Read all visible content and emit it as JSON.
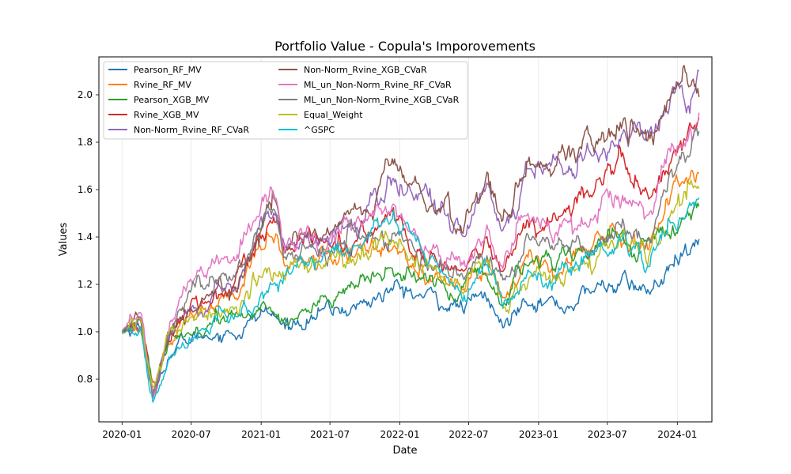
{
  "chart_data": {
    "type": "line",
    "title": "Portfolio Value - Copula's Imporovements",
    "xlabel": "Date",
    "ylabel": "Values",
    "x_start": "2020-01-01",
    "x_end": "2024-02-29",
    "xlim": [
      "2019-11-01",
      "2024-04-01"
    ],
    "ylim": [
      0.62,
      2.16
    ],
    "x_ticks": [
      {
        "date": "2020-01-01",
        "label": "2020-01"
      },
      {
        "date": "2020-07-01",
        "label": "2020-07"
      },
      {
        "date": "2021-01-01",
        "label": "2021-01"
      },
      {
        "date": "2021-07-01",
        "label": "2021-07"
      },
      {
        "date": "2022-01-01",
        "label": "2022-01"
      },
      {
        "date": "2022-07-01",
        "label": "2022-07"
      },
      {
        "date": "2023-01-01",
        "label": "2023-01"
      },
      {
        "date": "2023-07-01",
        "label": "2023-07"
      },
      {
        "date": "2024-01-01",
        "label": "2024-01"
      }
    ],
    "y_ticks": [
      {
        "value": 0.8,
        "label": "0.8"
      },
      {
        "value": 1.0,
        "label": "1.0"
      },
      {
        "value": 1.2,
        "label": "1.2"
      },
      {
        "value": 1.4,
        "label": "1.4"
      },
      {
        "value": 1.6,
        "label": "1.6"
      },
      {
        "value": 1.8,
        "label": "1.8"
      },
      {
        "value": 2.0,
        "label": "2.0"
      }
    ],
    "grid": true,
    "legend_position": "top-left",
    "series": [
      {
        "name": "Pearson_RF_MV",
        "color": "#1f77b4",
        "points": [
          [
            "2020-01-01",
            1.0
          ],
          [
            "2020-02-20",
            1.03
          ],
          [
            "2020-03-23",
            0.75
          ],
          [
            "2020-05-01",
            0.9
          ],
          [
            "2020-06-15",
            0.96
          ],
          [
            "2020-09-01",
            1.0
          ],
          [
            "2020-11-01",
            1.0
          ],
          [
            "2021-01-15",
            1.09
          ],
          [
            "2021-03-01",
            1.02
          ],
          [
            "2021-06-01",
            1.08
          ],
          [
            "2021-09-01",
            1.1
          ],
          [
            "2021-12-15",
            1.18
          ],
          [
            "2022-03-01",
            1.15
          ],
          [
            "2022-06-15",
            1.1
          ],
          [
            "2022-08-15",
            1.15
          ],
          [
            "2022-10-01",
            1.01
          ],
          [
            "2022-12-01",
            1.17
          ],
          [
            "2023-03-01",
            1.1
          ],
          [
            "2023-06-01",
            1.18
          ],
          [
            "2023-08-01",
            1.21
          ],
          [
            "2023-10-20",
            1.17
          ],
          [
            "2023-12-15",
            1.26
          ],
          [
            "2024-02-29",
            1.35
          ]
        ]
      },
      {
        "name": "Rvine_RF_MV",
        "color": "#ff7f0e",
        "points": [
          [
            "2020-01-01",
            1.0
          ],
          [
            "2020-02-20",
            1.04
          ],
          [
            "2020-03-23",
            0.77
          ],
          [
            "2020-05-01",
            0.96
          ],
          [
            "2020-07-01",
            1.08
          ],
          [
            "2020-09-01",
            1.1
          ],
          [
            "2020-11-01",
            1.15
          ],
          [
            "2021-01-15",
            1.4
          ],
          [
            "2021-02-10",
            1.44
          ],
          [
            "2021-03-01",
            1.28
          ],
          [
            "2021-06-01",
            1.3
          ],
          [
            "2021-09-01",
            1.32
          ],
          [
            "2021-12-15",
            1.4
          ],
          [
            "2022-03-01",
            1.25
          ],
          [
            "2022-06-15",
            1.18
          ],
          [
            "2022-08-15",
            1.28
          ],
          [
            "2022-10-01",
            1.15
          ],
          [
            "2022-12-01",
            1.3
          ],
          [
            "2023-03-01",
            1.28
          ],
          [
            "2023-06-01",
            1.4
          ],
          [
            "2023-08-01",
            1.42
          ],
          [
            "2023-10-20",
            1.38
          ],
          [
            "2023-12-15",
            1.55
          ],
          [
            "2024-02-29",
            1.74
          ]
        ]
      },
      {
        "name": "Pearson_XGB_MV",
        "color": "#2ca02c",
        "points": [
          [
            "2020-01-01",
            1.0
          ],
          [
            "2020-02-20",
            1.04
          ],
          [
            "2020-03-23",
            0.76
          ],
          [
            "2020-05-01",
            0.92
          ],
          [
            "2020-07-01",
            1.0
          ],
          [
            "2020-09-01",
            1.04
          ],
          [
            "2020-11-01",
            1.05
          ],
          [
            "2021-01-15",
            1.12
          ],
          [
            "2021-03-01",
            1.05
          ],
          [
            "2021-06-01",
            1.12
          ],
          [
            "2021-09-01",
            1.18
          ],
          [
            "2021-12-15",
            1.25
          ],
          [
            "2022-03-01",
            1.22
          ],
          [
            "2022-06-15",
            1.18
          ],
          [
            "2022-08-15",
            1.25
          ],
          [
            "2022-10-01",
            1.1
          ],
          [
            "2022-12-01",
            1.3
          ],
          [
            "2023-03-01",
            1.32
          ],
          [
            "2023-06-01",
            1.36
          ],
          [
            "2023-08-01",
            1.4
          ],
          [
            "2023-10-20",
            1.36
          ],
          [
            "2023-12-15",
            1.45
          ],
          [
            "2024-02-29",
            1.5
          ]
        ]
      },
      {
        "name": "Rvine_XGB_MV",
        "color": "#d62728",
        "points": [
          [
            "2020-01-01",
            1.0
          ],
          [
            "2020-02-20",
            1.04
          ],
          [
            "2020-03-23",
            0.73
          ],
          [
            "2020-05-01",
            0.95
          ],
          [
            "2020-07-01",
            1.1
          ],
          [
            "2020-09-01",
            1.15
          ],
          [
            "2020-11-01",
            1.2
          ],
          [
            "2021-01-15",
            1.42
          ],
          [
            "2021-02-10",
            1.45
          ],
          [
            "2021-03-01",
            1.35
          ],
          [
            "2021-06-01",
            1.38
          ],
          [
            "2021-09-01",
            1.4
          ],
          [
            "2021-12-15",
            1.45
          ],
          [
            "2022-03-01",
            1.32
          ],
          [
            "2022-06-15",
            1.25
          ],
          [
            "2022-08-15",
            1.38
          ],
          [
            "2022-10-01",
            1.22
          ],
          [
            "2022-12-01",
            1.45
          ],
          [
            "2023-03-01",
            1.5
          ],
          [
            "2023-06-01",
            1.62
          ],
          [
            "2023-08-01",
            1.68
          ],
          [
            "2023-10-20",
            1.6
          ],
          [
            "2023-12-15",
            1.75
          ],
          [
            "2024-02-29",
            1.86
          ]
        ]
      },
      {
        "name": "Non-Norm_Rvine_RF_CVaR",
        "color": "#9467bd",
        "points": [
          [
            "2020-01-01",
            1.0
          ],
          [
            "2020-02-20",
            1.05
          ],
          [
            "2020-03-23",
            0.72
          ],
          [
            "2020-05-01",
            0.96
          ],
          [
            "2020-07-01",
            1.1
          ],
          [
            "2020-09-01",
            1.15
          ],
          [
            "2020-11-01",
            1.2
          ],
          [
            "2021-01-15",
            1.5
          ],
          [
            "2021-02-10",
            1.55
          ],
          [
            "2021-03-01",
            1.35
          ],
          [
            "2021-06-01",
            1.38
          ],
          [
            "2021-09-01",
            1.45
          ],
          [
            "2021-12-15",
            1.65
          ],
          [
            "2022-03-01",
            1.55
          ],
          [
            "2022-06-15",
            1.42
          ],
          [
            "2022-08-15",
            1.6
          ],
          [
            "2022-10-01",
            1.45
          ],
          [
            "2022-12-01",
            1.68
          ],
          [
            "2023-03-01",
            1.68
          ],
          [
            "2023-06-01",
            1.75
          ],
          [
            "2023-08-01",
            1.85
          ],
          [
            "2023-10-20",
            1.8
          ],
          [
            "2023-12-15",
            1.95
          ],
          [
            "2024-02-29",
            2.08
          ]
        ]
      },
      {
        "name": "Non-Norm_Rvine_XGB_CVaR",
        "color": "#8c564b",
        "points": [
          [
            "2020-01-01",
            1.0
          ],
          [
            "2020-02-20",
            1.05
          ],
          [
            "2020-03-23",
            0.72
          ],
          [
            "2020-05-01",
            0.97
          ],
          [
            "2020-07-01",
            1.12
          ],
          [
            "2020-09-01",
            1.18
          ],
          [
            "2020-11-01",
            1.22
          ],
          [
            "2021-01-15",
            1.52
          ],
          [
            "2021-02-10",
            1.56
          ],
          [
            "2021-03-01",
            1.36
          ],
          [
            "2021-06-01",
            1.4
          ],
          [
            "2021-09-01",
            1.48
          ],
          [
            "2021-12-15",
            1.68
          ],
          [
            "2022-03-01",
            1.58
          ],
          [
            "2022-06-15",
            1.45
          ],
          [
            "2022-08-15",
            1.62
          ],
          [
            "2022-10-01",
            1.48
          ],
          [
            "2022-12-01",
            1.7
          ],
          [
            "2023-03-01",
            1.72
          ],
          [
            "2023-06-01",
            1.78
          ],
          [
            "2023-08-01",
            1.9
          ],
          [
            "2023-10-20",
            1.82
          ],
          [
            "2023-12-15",
            1.98
          ],
          [
            "2024-02-29",
            2.1
          ]
        ]
      },
      {
        "name": "ML_un_Non-Norm_Rvine_RF_CVaR",
        "color": "#e377c2",
        "points": [
          [
            "2020-01-01",
            1.0
          ],
          [
            "2020-02-20",
            1.06
          ],
          [
            "2020-03-23",
            0.72
          ],
          [
            "2020-05-01",
            1.02
          ],
          [
            "2020-07-01",
            1.2
          ],
          [
            "2020-09-01",
            1.28
          ],
          [
            "2020-11-01",
            1.32
          ],
          [
            "2021-01-15",
            1.6
          ],
          [
            "2021-02-10",
            1.65
          ],
          [
            "2021-03-01",
            1.4
          ],
          [
            "2021-06-01",
            1.42
          ],
          [
            "2021-09-01",
            1.45
          ],
          [
            "2021-12-15",
            1.48
          ],
          [
            "2022-03-01",
            1.35
          ],
          [
            "2022-06-15",
            1.3
          ],
          [
            "2022-08-15",
            1.4
          ],
          [
            "2022-10-01",
            1.28
          ],
          [
            "2022-12-01",
            1.5
          ],
          [
            "2023-03-01",
            1.45
          ],
          [
            "2023-06-01",
            1.48
          ],
          [
            "2023-08-01",
            1.58
          ],
          [
            "2023-10-20",
            1.52
          ],
          [
            "2023-12-15",
            1.75
          ],
          [
            "2024-02-29",
            1.92
          ]
        ]
      },
      {
        "name": "ML_un_Non-Norm_Rvine_XGB_CVaR",
        "color": "#7f7f7f",
        "points": [
          [
            "2020-01-01",
            1.0
          ],
          [
            "2020-02-20",
            1.05
          ],
          [
            "2020-03-23",
            0.74
          ],
          [
            "2020-05-01",
            0.98
          ],
          [
            "2020-07-01",
            1.15
          ],
          [
            "2020-09-01",
            1.2
          ],
          [
            "2020-11-01",
            1.25
          ],
          [
            "2021-01-15",
            1.48
          ],
          [
            "2021-02-10",
            1.52
          ],
          [
            "2021-03-01",
            1.32
          ],
          [
            "2021-06-01",
            1.35
          ],
          [
            "2021-09-01",
            1.38
          ],
          [
            "2021-12-15",
            1.42
          ],
          [
            "2022-03-01",
            1.3
          ],
          [
            "2022-06-15",
            1.22
          ],
          [
            "2022-08-15",
            1.32
          ],
          [
            "2022-10-01",
            1.18
          ],
          [
            "2022-12-01",
            1.38
          ],
          [
            "2023-03-01",
            1.35
          ],
          [
            "2023-06-01",
            1.38
          ],
          [
            "2023-08-01",
            1.45
          ],
          [
            "2023-10-20",
            1.42
          ],
          [
            "2023-12-15",
            1.62
          ],
          [
            "2024-02-29",
            1.84
          ]
        ]
      },
      {
        "name": "Equal_Weight",
        "color": "#bcbd22",
        "points": [
          [
            "2020-01-01",
            1.0
          ],
          [
            "2020-02-20",
            1.03
          ],
          [
            "2020-03-23",
            0.75
          ],
          [
            "2020-05-01",
            0.96
          ],
          [
            "2020-07-01",
            1.02
          ],
          [
            "2020-09-01",
            1.08
          ],
          [
            "2020-11-01",
            1.1
          ],
          [
            "2021-01-15",
            1.25
          ],
          [
            "2021-03-01",
            1.28
          ],
          [
            "2021-06-01",
            1.3
          ],
          [
            "2021-09-01",
            1.32
          ],
          [
            "2021-12-15",
            1.4
          ],
          [
            "2022-03-01",
            1.3
          ],
          [
            "2022-06-15",
            1.2
          ],
          [
            "2022-08-15",
            1.3
          ],
          [
            "2022-10-01",
            1.1
          ],
          [
            "2022-12-01",
            1.25
          ],
          [
            "2023-03-01",
            1.22
          ],
          [
            "2023-06-01",
            1.32
          ],
          [
            "2023-08-01",
            1.42
          ],
          [
            "2023-10-20",
            1.36
          ],
          [
            "2023-12-15",
            1.5
          ],
          [
            "2024-02-29",
            1.66
          ]
        ]
      },
      {
        "name": "^GSPC",
        "color": "#17becf",
        "points": [
          [
            "2020-01-01",
            1.0
          ],
          [
            "2020-02-20",
            1.03
          ],
          [
            "2020-03-23",
            0.69
          ],
          [
            "2020-05-01",
            0.88
          ],
          [
            "2020-07-01",
            0.98
          ],
          [
            "2020-09-01",
            1.06
          ],
          [
            "2020-11-01",
            1.05
          ],
          [
            "2021-01-15",
            1.18
          ],
          [
            "2021-03-01",
            1.22
          ],
          [
            "2021-06-01",
            1.3
          ],
          [
            "2021-09-01",
            1.38
          ],
          [
            "2021-12-15",
            1.47
          ],
          [
            "2022-03-01",
            1.35
          ],
          [
            "2022-06-15",
            1.15
          ],
          [
            "2022-08-15",
            1.3
          ],
          [
            "2022-10-01",
            1.08
          ],
          [
            "2022-12-01",
            1.2
          ],
          [
            "2023-03-01",
            1.22
          ],
          [
            "2023-06-01",
            1.35
          ],
          [
            "2023-08-01",
            1.4
          ],
          [
            "2023-10-20",
            1.3
          ],
          [
            "2023-12-15",
            1.45
          ],
          [
            "2024-02-29",
            1.56
          ]
        ]
      }
    ]
  }
}
